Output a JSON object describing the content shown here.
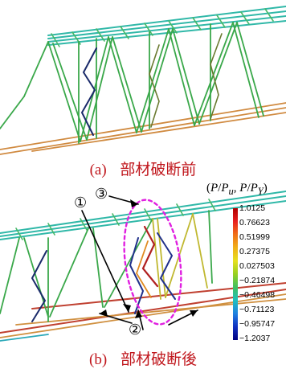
{
  "captions": {
    "a": {
      "label": "(a)",
      "text": "部材破断前"
    },
    "b": {
      "label": "(b)",
      "text": "部材破断後"
    }
  },
  "colorbar": {
    "title_parts": [
      "(",
      "P",
      "/",
      "P",
      "u",
      ", ",
      "P",
      "/",
      "P",
      "Y",
      ")"
    ],
    "ticks": [
      "1.0125",
      "0.76623",
      "0.51999",
      "0.27375",
      "0.027503",
      "−0.21874",
      "−0.46498",
      "−0.71123",
      "−0.95747",
      "−1.2037"
    ],
    "colors": [
      "#b00000",
      "#e82020",
      "#f07018",
      "#f0b018",
      "#e6e020",
      "#98d020",
      "#40c060",
      "#20c0c0",
      "#2080e0",
      "#1030c0",
      "#000080"
    ]
  },
  "markers": {
    "m1": "①",
    "m2": "②",
    "m3": "③"
  },
  "colors": {
    "caption": "#c0161c",
    "ellipse": "#e020e0",
    "truss_green": "#3aa84a",
    "truss_orange": "#d07a30",
    "truss_cyan": "#30b8c0"
  }
}
